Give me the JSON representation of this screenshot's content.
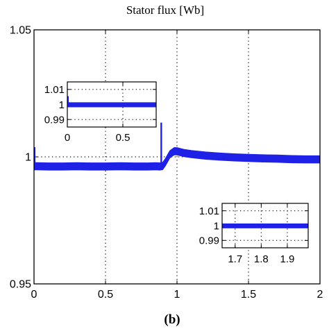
{
  "chart_data": {
    "type": "line",
    "title": "Stator flux [Wb]",
    "caption": "(b)",
    "xlabel": "",
    "ylabel": "",
    "xlim": [
      0,
      2
    ],
    "ylim": [
      0.95,
      1.05
    ],
    "grid": true,
    "x_ticks": [
      "0",
      "0.5",
      "1",
      "1.5",
      "2"
    ],
    "y_ticks": [
      "0.95",
      "1",
      "1.05"
    ],
    "color": "#1f22e6",
    "main_series": {
      "x": [
        0,
        0.02,
        0.1,
        0.2,
        0.3,
        0.4,
        0.5,
        0.6,
        0.7,
        0.8,
        0.85,
        0.88,
        0.9,
        0.92,
        0.95,
        0.98,
        1.0,
        1.05,
        1.1,
        1.2,
        1.3,
        1.4,
        1.5,
        1.6,
        1.7,
        1.8,
        1.9,
        2.0
      ],
      "y": [
        0.9963,
        0.9963,
        0.9962,
        0.9962,
        0.9963,
        0.9962,
        0.9962,
        0.9963,
        0.9962,
        0.9962,
        0.9963,
        0.9962,
        0.9964,
        0.998,
        1.001,
        1.0022,
        1.0022,
        1.0015,
        1.0011,
        1.0005,
        1.0001,
        0.9998,
        0.9996,
        0.9994,
        0.9993,
        0.9991,
        0.999,
        0.999
      ],
      "band": 0.0012,
      "spikes": [
        {
          "x": 0.0,
          "y": 1.0038
        },
        {
          "x": 0.89,
          "y": 1.0135
        },
        {
          "x": 0.89,
          "y": 0.9962
        }
      ]
    },
    "inset_start": {
      "xlim": [
        0,
        0.8
      ],
      "ylim": [
        0.985,
        1.015
      ],
      "x_ticks": [
        "0",
        "0.5"
      ],
      "y_ticks": [
        "1.01",
        "1",
        "0.99"
      ],
      "x": [
        0,
        0.8
      ],
      "y": [
        0.9998,
        0.9998
      ],
      "spike": {
        "x": 0.005,
        "y": 1.0055
      }
    },
    "inset_end": {
      "xlim": [
        1.65,
        1.98
      ],
      "ylim": [
        0.985,
        1.015
      ],
      "x_ticks": [
        "1.7",
        "1.8",
        "1.9"
      ],
      "y_ticks": [
        "1.01",
        "1",
        "0.99"
      ],
      "x": [
        1.65,
        1.98
      ],
      "y": [
        0.9998,
        0.9998
      ]
    }
  }
}
